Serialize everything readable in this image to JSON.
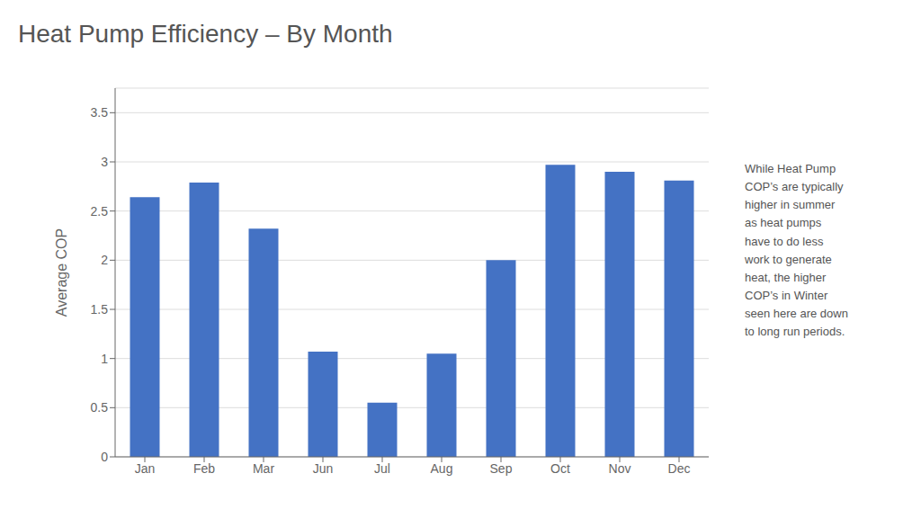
{
  "chart_data": {
    "type": "bar",
    "title": "Heat Pump Efficiency – By Month",
    "ylabel": "Average COP",
    "categories": [
      "Jan",
      "Feb",
      "Mar",
      "Jun",
      "Jul",
      "Aug",
      "Sep",
      "Oct",
      "Nov",
      "Dec"
    ],
    "values": [
      2.64,
      2.79,
      2.32,
      1.07,
      0.55,
      1.05,
      2.0,
      2.97,
      2.9,
      2.81
    ],
    "color": "#4472C4",
    "ylim": [
      0,
      3.75
    ],
    "yticks": [
      0,
      0.5,
      1,
      1.5,
      2,
      2.5,
      3,
      3.5
    ],
    "grid": true,
    "annotation": "While Heat Pump\nCOP’s are typically\nhigher in summer\nas heat pumps\nhave to do less\nwork to generate\nheat, the higher\nCOP’s in Winter\nseen here are down\nto long run periods."
  }
}
